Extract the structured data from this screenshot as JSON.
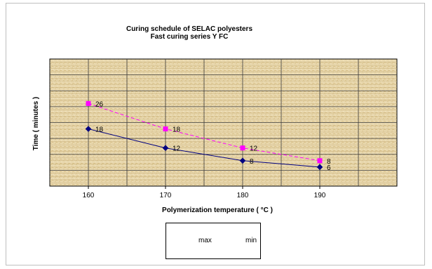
{
  "chart_data": {
    "type": "line",
    "title": "Curing schedule of SELAC polyesters",
    "subtitle": "Fast curing series Y FC",
    "xlabel": "Polymerization temperature ( °C )",
    "ylabel": "Time ( minutes )",
    "categories": [
      "160",
      "170",
      "180",
      "190"
    ],
    "ylim": [
      0,
      40
    ],
    "grid": true,
    "legend_position": "bottom",
    "series": [
      {
        "name": "max",
        "values": [
          26,
          18,
          12,
          8
        ],
        "labels": [
          "26",
          "18",
          "12",
          "8"
        ],
        "color": "#ff00ff",
        "dash": "dashed",
        "marker": "square"
      },
      {
        "name": "min",
        "values": [
          18,
          12,
          8,
          6
        ],
        "labels": [
          "18",
          "12",
          "8",
          "6"
        ],
        "color": "#000080",
        "dash": "solid",
        "marker": "diamond"
      }
    ]
  },
  "colors": {
    "plot_background": "#e8d7ad",
    "grid": "#3a3a3a"
  }
}
